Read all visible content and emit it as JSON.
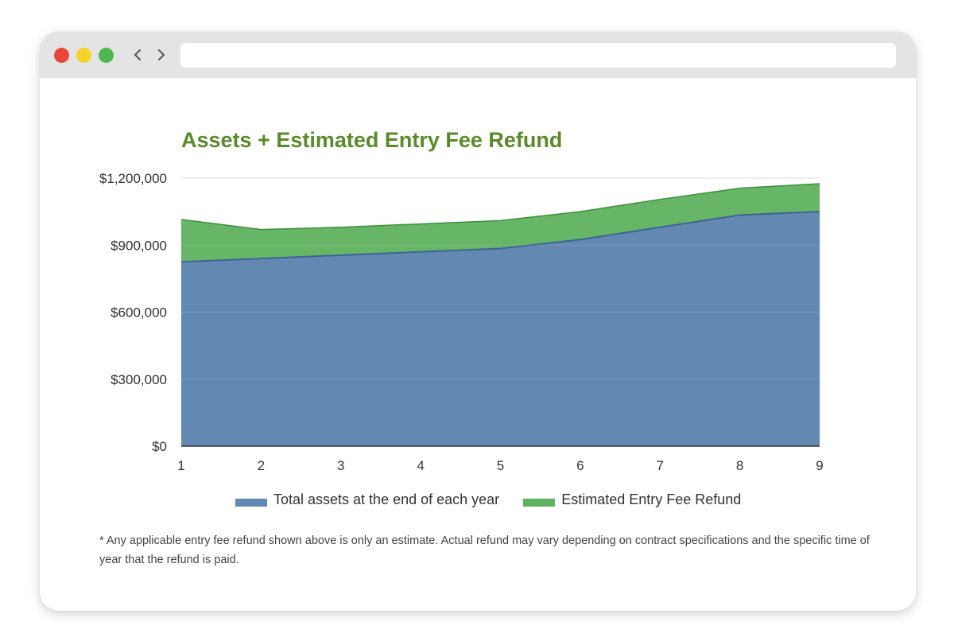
{
  "browser": {
    "dots": [
      {
        "name": "close",
        "color": "#e8453c"
      },
      {
        "name": "minimize",
        "color": "#f5d328"
      },
      {
        "name": "maximize",
        "color": "#4fb74f"
      }
    ],
    "back_glyph": "‹",
    "forward_glyph": "›",
    "address_value": ""
  },
  "colors": {
    "title": "#5a8a2a",
    "assets_fill": "#6389b3",
    "assets_line": "#3d6494",
    "refund_fill": "#5fb25f",
    "refund_line": "#3d8f3d",
    "grid": "#d8d8d8"
  },
  "chart_data": {
    "type": "area",
    "stacked": true,
    "title": "Assets + Estimated Entry Fee Refund",
    "x": [
      1,
      2,
      3,
      4,
      5,
      6,
      7,
      8,
      9
    ],
    "ylim": [
      0,
      1200000
    ],
    "yticks": [
      "$0",
      "$300,000",
      "$600,000",
      "$900,000",
      "$1,200,000"
    ],
    "ytick_values": [
      0,
      300000,
      600000,
      900000,
      1200000
    ],
    "series": [
      {
        "name": "Total assets at the end of each year",
        "values": [
          825000,
          840000,
          855000,
          870000,
          885000,
          925000,
          980000,
          1035000,
          1050000
        ]
      },
      {
        "name": "Estimated Entry Fee Refund",
        "values": [
          190000,
          130000,
          125000,
          125000,
          125000,
          125000,
          125000,
          120000,
          125000
        ]
      }
    ],
    "legend_position": "bottom",
    "grid": true
  },
  "footnote": "* Any applicable entry fee refund shown above is only an estimate. Actual refund may vary depending on contract specifications and the specific time of year that the refund is paid."
}
